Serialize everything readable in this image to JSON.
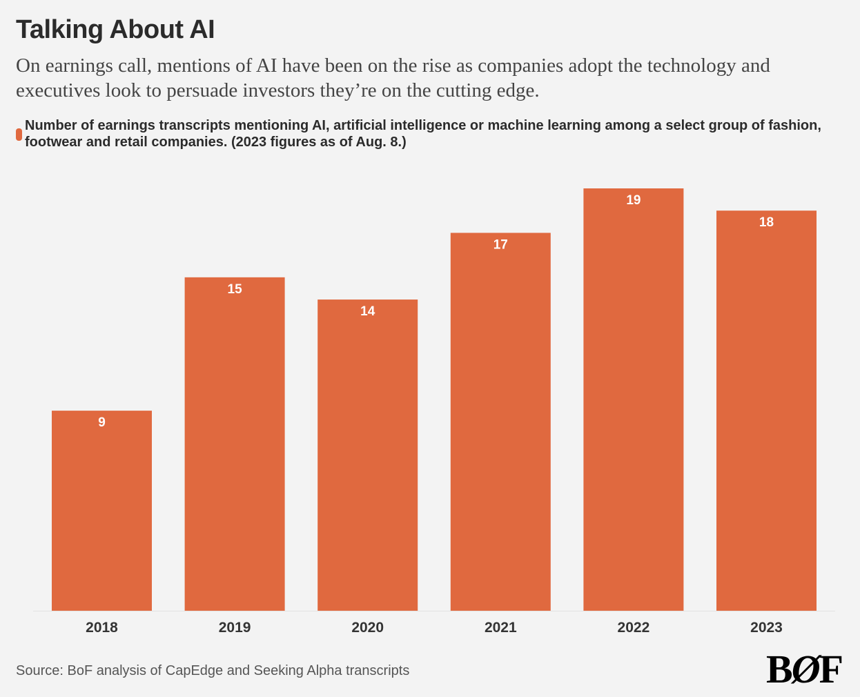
{
  "title": "Talking About AI",
  "subtitle": "On earnings call, mentions of AI have been on the rise as companies adopt the technology and executives look to persuade investors they’re on the cutting edge.",
  "source": "Source: BoF analysis of CapEdge and Seeking Alpha transcripts",
  "logo": "BOF",
  "colors": {
    "bar": "#e0693f",
    "background": "#f3f3f3"
  },
  "chart_data": {
    "type": "bar",
    "title": "Talking About AI",
    "categories": [
      "2018",
      "2019",
      "2020",
      "2021",
      "2022",
      "2023"
    ],
    "series": [
      {
        "name": "Number of earnings transcripts mentioning AI, artificial intelligence or machine learning among a select group of fashion, footwear and retail companies. (2023 figures as of Aug. 8.)",
        "values": [
          9,
          15,
          14,
          17,
          19,
          18
        ]
      }
    ],
    "ylim": [
      0,
      19
    ],
    "grid": false,
    "legend": "top-left",
    "data_labels": true
  }
}
